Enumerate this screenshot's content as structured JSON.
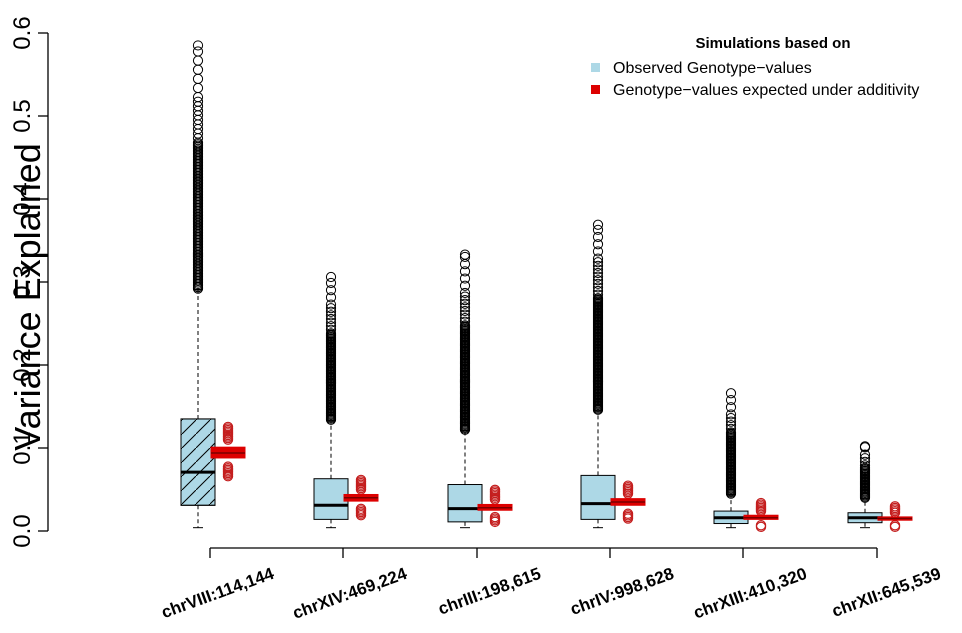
{
  "chart_data": {
    "type": "boxplot",
    "ylabel": "Variance Explained",
    "ylim": [
      0,
      0.6
    ],
    "yticks": [
      0.0,
      0.1,
      0.2,
      0.3,
      0.4,
      0.5,
      0.6
    ],
    "ytick_labels": [
      "0.0",
      "0.1",
      "0.2",
      "0.3",
      "0.4",
      "0.5",
      "0.6"
    ],
    "legend": {
      "title": "Simulations based on",
      "position": "top-right",
      "entries": [
        {
          "label": "Observed Genotype−values",
          "color": "#add8e6"
        },
        {
          "label": "Genotype−values expected under additivity",
          "color": "#dd0000"
        }
      ]
    },
    "categories": [
      "chrVIII:114,144",
      "chrXIV:469,224",
      "chrIII:198,615",
      "chrIV:998,628",
      "chrXIII:410,320",
      "chrXII:645,539"
    ],
    "series": [
      {
        "name": "Observed Genotype−values",
        "color": "#add8e6",
        "boxes": [
          {
            "min": 0.004,
            "q1": 0.031,
            "median": 0.071,
            "q3": 0.135,
            "whisker_high": 0.291,
            "outliers_low": 0.292,
            "outliers_high": 0.585,
            "hatched": true
          },
          {
            "min": 0.004,
            "q1": 0.014,
            "median": 0.031,
            "q3": 0.063,
            "whisker_high": 0.133,
            "outliers_low": 0.134,
            "outliers_high": 0.306,
            "hatched": false
          },
          {
            "min": 0.004,
            "q1": 0.011,
            "median": 0.027,
            "q3": 0.056,
            "whisker_high": 0.121,
            "outliers_low": 0.122,
            "outliers_high": 0.333,
            "hatched": false
          },
          {
            "min": 0.004,
            "q1": 0.014,
            "median": 0.033,
            "q3": 0.067,
            "whisker_high": 0.145,
            "outliers_low": 0.146,
            "outliers_high": 0.369,
            "hatched": false
          },
          {
            "min": 0.004,
            "q1": 0.009,
            "median": 0.016,
            "q3": 0.024,
            "whisker_high": 0.044,
            "outliers_low": 0.045,
            "outliers_high": 0.166,
            "hatched": false
          },
          {
            "min": 0.004,
            "q1": 0.01,
            "median": 0.016,
            "q3": 0.022,
            "whisker_high": 0.039,
            "outliers_low": 0.04,
            "outliers_high": 0.102,
            "hatched": false
          }
        ]
      },
      {
        "name": "Genotype−values expected under additivity",
        "color": "#dd0000",
        "boxes": [
          {
            "q1": 0.088,
            "median": 0.094,
            "q3": 0.101,
            "outliers_low_range": [
              0.066,
              0.078
            ],
            "outliers_high_range": [
              0.11,
              0.127
            ]
          },
          {
            "q1": 0.036,
            "median": 0.04,
            "q3": 0.044,
            "outliers_low_range": [
              0.019,
              0.027
            ],
            "outliers_high_range": [
              0.05,
              0.062
            ]
          },
          {
            "q1": 0.025,
            "median": 0.028,
            "q3": 0.032,
            "outliers_low_range": [
              0.011,
              0.017
            ],
            "outliers_high_range": [
              0.038,
              0.051
            ]
          },
          {
            "q1": 0.031,
            "median": 0.035,
            "q3": 0.039,
            "outliers_low_range": [
              0.015,
              0.021
            ],
            "outliers_high_range": [
              0.045,
              0.055
            ]
          },
          {
            "q1": 0.014,
            "median": 0.016,
            "q3": 0.019,
            "outliers_low_range": [
              0.005,
              0.008
            ],
            "outliers_high_range": [
              0.024,
              0.034
            ]
          },
          {
            "q1": 0.013,
            "median": 0.015,
            "q3": 0.017,
            "outliers_low_range": [
              0.005,
              0.007
            ],
            "outliers_high_range": [
              0.022,
              0.031
            ]
          }
        ]
      }
    ]
  }
}
